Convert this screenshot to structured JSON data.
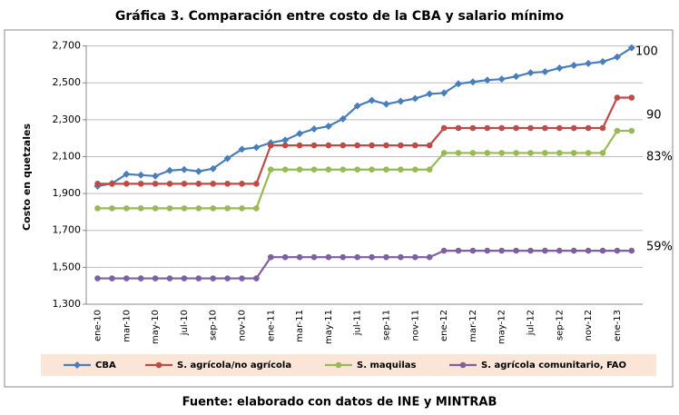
{
  "chart_data": {
    "type": "line",
    "title": "Gráfica 3.  Comparación entre costo de la CBA y salario mínimo",
    "y_label": "Costo en quetzales",
    "source": "Fuente: elaborado con datos de INE y MINTRAB",
    "annotations": [
      "100",
      "90",
      "83%",
      "59%"
    ],
    "categories": [
      "ene-10",
      null,
      "mar-10",
      null,
      "may-10",
      null,
      "jul-10",
      null,
      "sep-10",
      null,
      "nov-10",
      null,
      "ene-11",
      null,
      "mar-11",
      null,
      "may-11",
      null,
      "jul-11",
      null,
      "sep-11",
      null,
      "nov-11",
      null,
      "ene-12",
      null,
      "mar-12",
      null,
      "may-12",
      null,
      "jul-12",
      null,
      "sep-12",
      null,
      "nov-12",
      null,
      "ene-13",
      null
    ],
    "series": [
      {
        "name": "CBA",
        "color": "#4a7ebb",
        "marker": "diamond",
        "values": [
          1940,
          1955,
          2005,
          2000,
          1995,
          2025,
          2030,
          2020,
          2035,
          2090,
          2140,
          2150,
          2175,
          2190,
          2225,
          2250,
          2265,
          2305,
          2375,
          2405,
          2385,
          2400,
          2415,
          2440,
          2445,
          2495,
          2505,
          2515,
          2520,
          2535,
          2555,
          2560,
          2580,
          2595,
          2605,
          2615,
          2640,
          2690
        ]
      },
      {
        "name": "S. agrícola/no agrícola",
        "color": "#be4b48",
        "marker": "circle",
        "values": [
          1953,
          1953,
          1953,
          1953,
          1953,
          1953,
          1953,
          1953,
          1953,
          1953,
          1953,
          1953,
          2161,
          2161,
          2161,
          2161,
          2161,
          2161,
          2161,
          2161,
          2161,
          2161,
          2161,
          2161,
          2255,
          2255,
          2255,
          2255,
          2255,
          2255,
          2255,
          2255,
          2255,
          2255,
          2255,
          2255,
          2420,
          2420
        ]
      },
      {
        "name": "S. maquilas",
        "color": "#98b954",
        "marker": "circle",
        "values": [
          1820,
          1820,
          1820,
          1820,
          1820,
          1820,
          1820,
          1820,
          1820,
          1820,
          1820,
          1820,
          2030,
          2030,
          2030,
          2030,
          2030,
          2030,
          2030,
          2030,
          2030,
          2030,
          2030,
          2030,
          2120,
          2120,
          2120,
          2120,
          2120,
          2120,
          2120,
          2120,
          2120,
          2120,
          2120,
          2120,
          2240,
          2240
        ]
      },
      {
        "name": "S.  agrícola comunitario, FAO",
        "color": "#7d60a0",
        "marker": "circle",
        "values": [
          1440,
          1440,
          1440,
          1440,
          1440,
          1440,
          1440,
          1440,
          1440,
          1440,
          1440,
          1440,
          1555,
          1555,
          1555,
          1555,
          1555,
          1555,
          1555,
          1555,
          1555,
          1555,
          1555,
          1555,
          1590,
          1590,
          1590,
          1590,
          1590,
          1590,
          1590,
          1590,
          1590,
          1590,
          1590,
          1590,
          1590,
          1590
        ]
      }
    ],
    "ylim": [
      1300,
      2800
    ],
    "yticks": [
      {
        "value": 1300,
        "label": "1,300"
      },
      {
        "value": 1500,
        "label": "1,500"
      },
      {
        "value": 1700,
        "label": "1,700"
      },
      {
        "value": 1900,
        "label": "1,900"
      },
      {
        "value": 2100,
        "label": "2,100"
      },
      {
        "value": 2300,
        "label": "2,300"
      },
      {
        "value": 2500,
        "label": "2,500"
      },
      {
        "value": 2700,
        "label": "2,700"
      }
    ],
    "grid": true
  }
}
